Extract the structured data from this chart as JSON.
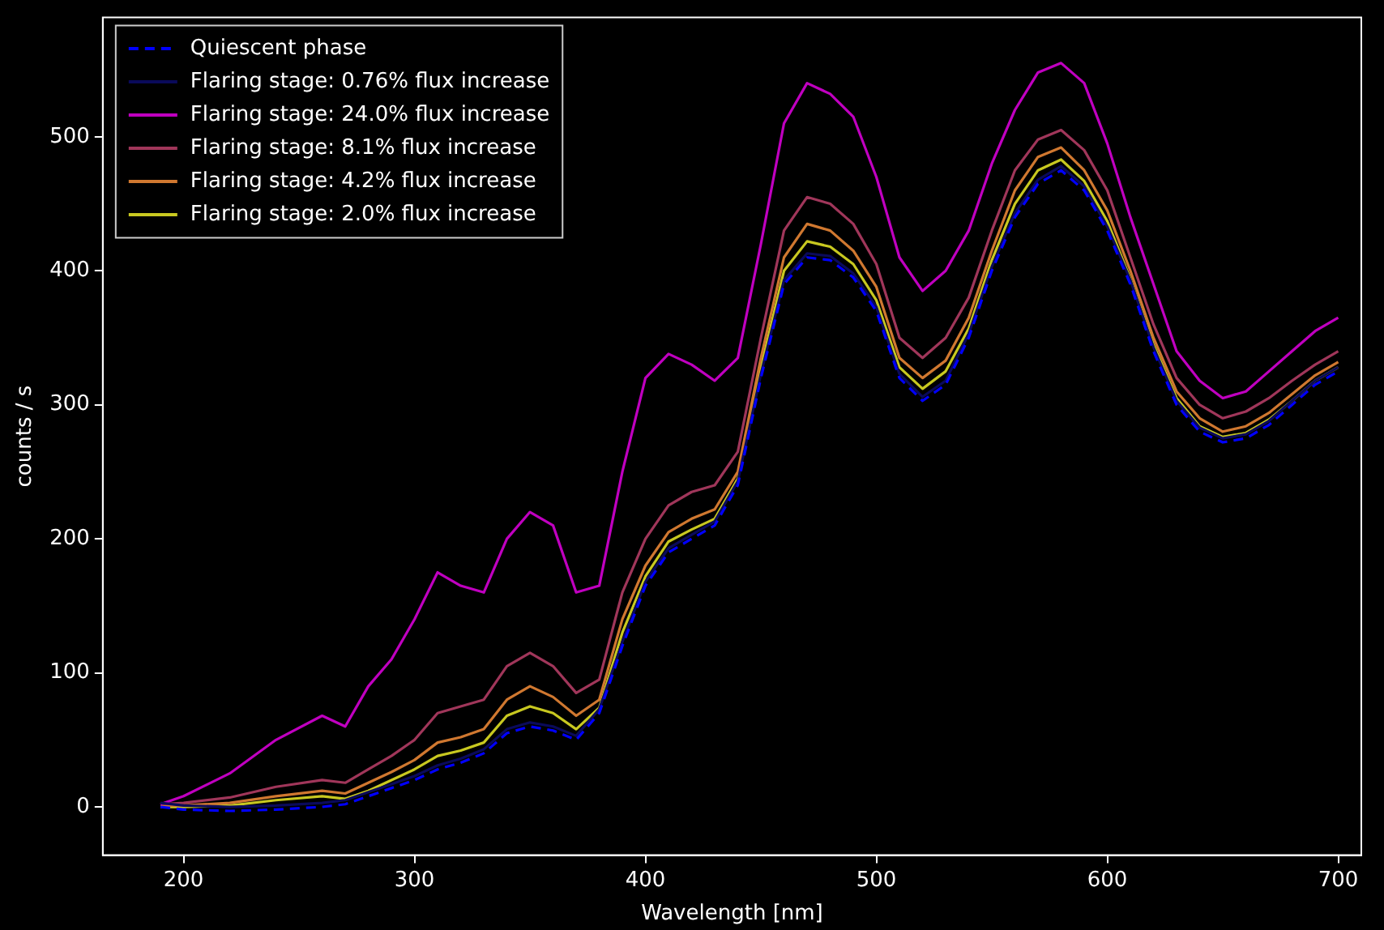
{
  "chart_data": {
    "type": "line",
    "xlabel": "Wavelength [nm]",
    "ylabel": "counts / s",
    "legend": "top left",
    "grid": false,
    "marker": "none",
    "xlim": [
      165,
      710
    ],
    "ylim": [
      -36,
      589
    ],
    "xticks": [
      200,
      300,
      400,
      500,
      600,
      700
    ],
    "yticks": [
      0,
      100,
      200,
      300,
      400,
      500
    ],
    "x": [
      190,
      200,
      220,
      240,
      260,
      270,
      280,
      290,
      300,
      310,
      320,
      330,
      340,
      350,
      360,
      370,
      380,
      390,
      400,
      410,
      420,
      430,
      440,
      450,
      460,
      470,
      480,
      490,
      500,
      510,
      520,
      530,
      540,
      550,
      560,
      570,
      580,
      590,
      600,
      610,
      620,
      630,
      640,
      650,
      660,
      670,
      680,
      690,
      700
    ],
    "series": [
      {
        "name": "Quiescent phase",
        "color": "#0000ff",
        "line_style": "dashed",
        "values": [
          0,
          -2,
          -3,
          -2,
          0,
          2,
          8,
          14,
          20,
          28,
          33,
          40,
          55,
          60,
          57,
          50,
          70,
          120,
          165,
          190,
          200,
          210,
          240,
          320,
          390,
          410,
          408,
          395,
          370,
          320,
          303,
          315,
          350,
          400,
          440,
          465,
          475,
          460,
          430,
          390,
          340,
          300,
          280,
          272,
          275,
          285,
          300,
          315,
          325
        ]
      },
      {
        "name": "Flaring stage: 0.76% flux increase",
        "color": "#0a0a5a",
        "line_style": "solid",
        "values": [
          3,
          1,
          0,
          1,
          3,
          5,
          11,
          17,
          23,
          31,
          36,
          43,
          58,
          63,
          60,
          53,
          73,
          123,
          168,
          193,
          203,
          213,
          243,
          323,
          393,
          413,
          411,
          398,
          373,
          323,
          306,
          318,
          353,
          403,
          443,
          468,
          478,
          463,
          433,
          393,
          343,
          303,
          283,
          275,
          278,
          288,
          303,
          318,
          328
        ]
      },
      {
        "name": "Flaring stage: 24.0% flux increase",
        "color": "#c000c0",
        "line_style": "solid",
        "values": [
          2,
          8,
          25,
          50,
          68,
          60,
          90,
          110,
          140,
          175,
          165,
          160,
          200,
          220,
          210,
          160,
          165,
          250,
          320,
          338,
          330,
          318,
          335,
          420,
          510,
          540,
          532,
          515,
          470,
          410,
          385,
          400,
          430,
          480,
          520,
          548,
          555,
          540,
          495,
          440,
          390,
          340,
          318,
          305,
          310,
          325,
          340,
          355,
          365
        ]
      },
      {
        "name": "Flaring stage: 8.1% flux increase",
        "color": "#a0365a",
        "line_style": "solid",
        "values": [
          2,
          3,
          7,
          15,
          20,
          18,
          28,
          38,
          50,
          70,
          75,
          80,
          105,
          115,
          105,
          85,
          95,
          160,
          200,
          225,
          235,
          240,
          265,
          350,
          430,
          455,
          450,
          435,
          405,
          350,
          335,
          350,
          380,
          430,
          475,
          498,
          505,
          490,
          460,
          410,
          360,
          320,
          300,
          290,
          295,
          305,
          318,
          330,
          340
        ]
      },
      {
        "name": "Flaring stage: 4.2% flux increase",
        "color": "#d07830",
        "line_style": "solid",
        "values": [
          1,
          1,
          3,
          8,
          12,
          10,
          18,
          26,
          35,
          48,
          52,
          58,
          80,
          90,
          82,
          68,
          80,
          140,
          180,
          205,
          215,
          222,
          250,
          335,
          410,
          435,
          430,
          415,
          388,
          335,
          320,
          333,
          365,
          415,
          460,
          485,
          492,
          475,
          445,
          400,
          350,
          310,
          290,
          280,
          284,
          294,
          308,
          322,
          332
        ]
      },
      {
        "name": "Flaring stage: 2.0% flux increase",
        "color": "#c8c820",
        "line_style": "solid",
        "values": [
          0,
          0,
          1,
          5,
          8,
          6,
          12,
          20,
          28,
          38,
          42,
          48,
          68,
          75,
          70,
          58,
          74,
          130,
          172,
          198,
          207,
          215,
          245,
          328,
          400,
          422,
          418,
          405,
          378,
          328,
          312,
          325,
          357,
          408,
          450,
          475,
          483,
          467,
          437,
          394,
          345,
          305,
          284,
          276,
          279,
          289,
          303,
          318,
          328
        ]
      }
    ]
  }
}
